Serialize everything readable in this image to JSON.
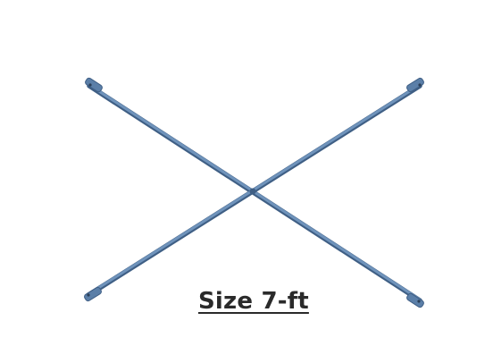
{
  "product": {
    "size_label": "Size 7-ft",
    "brace_color": "#5b7fa8",
    "brace_highlight": "#8fb0d3",
    "brace_shadow": "#3f5f85",
    "background": "#ffffff"
  }
}
